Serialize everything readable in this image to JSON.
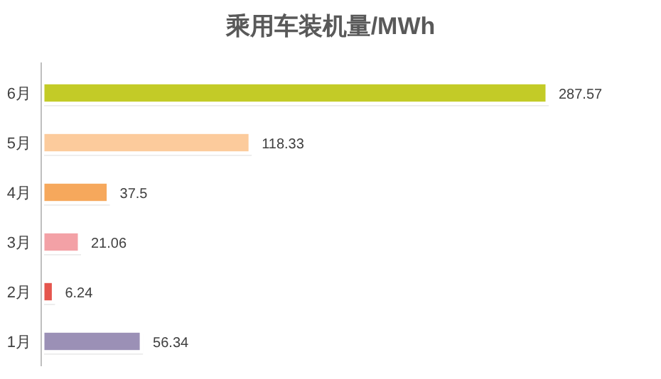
{
  "chart_data": {
    "type": "bar",
    "orientation": "horizontal",
    "title": "乘用车装机量/MWh",
    "categories": [
      "6月",
      "5月",
      "4月",
      "3月",
      "2月",
      "1月"
    ],
    "values": [
      287.57,
      118.33,
      37.5,
      21.06,
      6.24,
      56.34
    ],
    "colors": [
      "#c3cb27",
      "#fccb9c",
      "#f6a85c",
      "#f3a1a6",
      "#e5564e",
      "#9b90b6"
    ],
    "data_labels": true
  }
}
